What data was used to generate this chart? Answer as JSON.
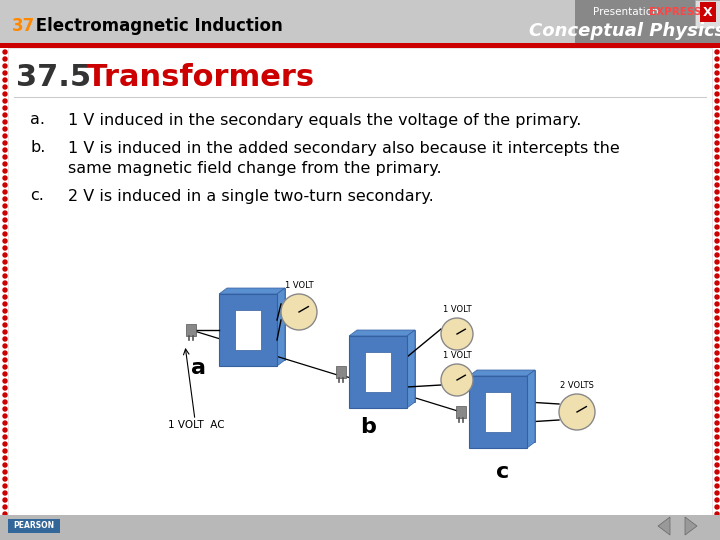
{
  "slide_title_num": "37",
  "slide_title_text": " Electromagnetic Induction",
  "section_num": "37.5",
  "section_title": " Transformers",
  "header_bg": "#c8c8c8",
  "header_red_bar_color": "#cc0000",
  "header_text_color": "#000000",
  "section_num_color": "#cc0000",
  "section_title_color": "#cc0000",
  "body_bg": "#ffffff",
  "border_dot_color": "#cc0000",
  "bullet_a": "1 V induced in the secondary equals the voltage of the primary.",
  "bullet_b_line1": "1 V is induced in the added secondary also because it intercepts the",
  "bullet_b_line2": "same magnetic field change from the primary.",
  "bullet_c": "2 V is induced in a single two-turn secondary.",
  "footer_bg": "#b8b8b8",
  "footer_text": "PEARSON",
  "conceptual_physics_text": "Conceptual Physics",
  "nav_arrow_color": "#888888",
  "x_button_color": "#cc0000",
  "right_header_bg": "#888888",
  "transformer_blue": "#4a7abf",
  "transformer_blue_dark": "#3560a0"
}
